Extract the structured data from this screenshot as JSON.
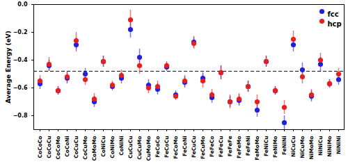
{
  "chart_data": {
    "type": "scatter",
    "y_label": "Average Energy (eV)",
    "categories": [
      "CoCoCo",
      "CoCoCu",
      "CoCoMo",
      "CoCoNi",
      "CoCuCu",
      "CoCuMo",
      "CoMoMo",
      "CoNiCu",
      "CoNiMo",
      "CoNiNi",
      "CuCuCu",
      "CuCuMo",
      "CuMoMo",
      "FeCoCo",
      "FeCoCu",
      "FeCoMo",
      "FeCoNi",
      "FeCuCu",
      "FeCuMo",
      "FeFeCo",
      "FeFeCu",
      "FeFeFe",
      "FeFeMo",
      "FeFeNi",
      "FeMoMo",
      "FeNiCu",
      "FeNiMo",
      "FeNiNi",
      "NiCuCu",
      "NiCuMo",
      "NiMoMo",
      "NiNiCu",
      "NiNiMo",
      "NiNiNi"
    ],
    "series": [
      {
        "name": "fcc",
        "color": "#1f1fe0",
        "marker": "circle",
        "values": [
          -0.57,
          -0.44,
          -0.62,
          -0.53,
          -0.29,
          -0.5,
          -0.7,
          -0.41,
          -0.59,
          -0.53,
          -0.18,
          -0.38,
          -0.58,
          -0.61,
          -0.45,
          -0.65,
          -0.56,
          -0.27,
          -0.53,
          -0.67,
          -0.49,
          -0.7,
          -0.69,
          -0.59,
          -0.76,
          -0.41,
          -0.62,
          -0.85,
          -0.29,
          -0.47,
          -0.66,
          -0.43,
          -0.57,
          -0.54
        ],
        "errors": [
          0.04,
          0.04,
          0.03,
          0.04,
          0.05,
          0.04,
          0.04,
          0.04,
          0.03,
          0.04,
          0.06,
          0.06,
          0.04,
          0.04,
          0.03,
          0.03,
          0.04,
          0.04,
          0.04,
          0.04,
          0.05,
          0.04,
          0.04,
          0.04,
          0.05,
          0.04,
          0.03,
          0.05,
          0.05,
          0.05,
          0.04,
          0.05,
          0.03,
          0.04
        ]
      },
      {
        "name": "hcp",
        "color": "#e81e1e",
        "marker": "circle",
        "values": [
          -0.55,
          -0.43,
          -0.62,
          -0.52,
          -0.26,
          -0.54,
          -0.68,
          -0.41,
          -0.58,
          -0.51,
          -0.11,
          -0.44,
          -0.6,
          -0.59,
          -0.44,
          -0.66,
          -0.55,
          -0.28,
          -0.55,
          -0.65,
          -0.49,
          -0.7,
          -0.68,
          -0.59,
          -0.7,
          -0.41,
          -0.62,
          -0.74,
          -0.25,
          -0.52,
          -0.65,
          -0.4,
          -0.57,
          -0.5
        ],
        "errors": [
          0.04,
          0.05,
          0.03,
          0.04,
          0.06,
          0.04,
          0.04,
          0.04,
          0.03,
          0.04,
          0.07,
          0.06,
          0.04,
          0.04,
          0.03,
          0.03,
          0.04,
          0.04,
          0.05,
          0.04,
          0.05,
          0.05,
          0.04,
          0.04,
          0.05,
          0.04,
          0.03,
          0.05,
          0.06,
          0.05,
          0.04,
          0.05,
          0.03,
          0.04
        ]
      }
    ],
    "reference_line": {
      "value": -0.48,
      "line_style": "dashed"
    },
    "ylim": [
      -0.9,
      0.0
    ],
    "yticks": [
      {
        "value": -0.8,
        "label": "−0.8"
      },
      {
        "value": -0.6,
        "label": "−0.6"
      },
      {
        "value": -0.4,
        "label": "−0.4"
      },
      {
        "value": -0.2,
        "label": "−0.2"
      },
      {
        "value": 0,
        "label": "0.0"
      }
    ],
    "legend": "upper right",
    "grid": false
  }
}
